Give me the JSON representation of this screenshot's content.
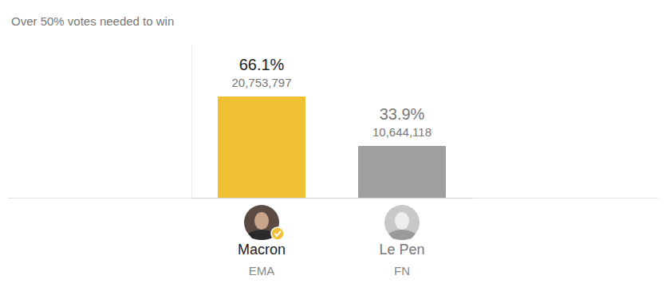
{
  "chart_data": {
    "type": "bar",
    "subtitle": "Over 50% votes needed to win",
    "categories": [
      "Macron",
      "Le Pen"
    ],
    "parties": [
      "EMA",
      "FN"
    ],
    "values": [
      66.1,
      33.9
    ],
    "value_labels": [
      "66.1%",
      "33.9%"
    ],
    "votes": [
      {
        "value": 20753797,
        "label": "20,753,797"
      },
      {
        "value": 10644118,
        "label": "10,644,118"
      }
    ],
    "colors": [
      "#f0c134",
      "#9d9fa1"
    ],
    "ylim": [
      0,
      100
    ],
    "data_labels": true,
    "tick_labels": "x"
  }
}
